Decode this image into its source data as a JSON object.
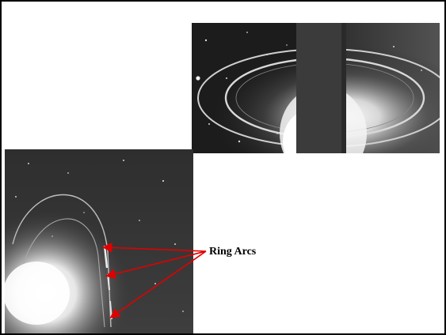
{
  "annotation": {
    "label": "Ring Arcs",
    "arrow_color": "#e00000"
  },
  "photos": {
    "top": {
      "depicts": "dark-sky-image-with-bright-elliptical-rings-around-an-occulted-planet"
    },
    "bottom": {
      "depicts": "dark-sky-image-with-faint-ring-arcs-and-bright-glow"
    }
  }
}
